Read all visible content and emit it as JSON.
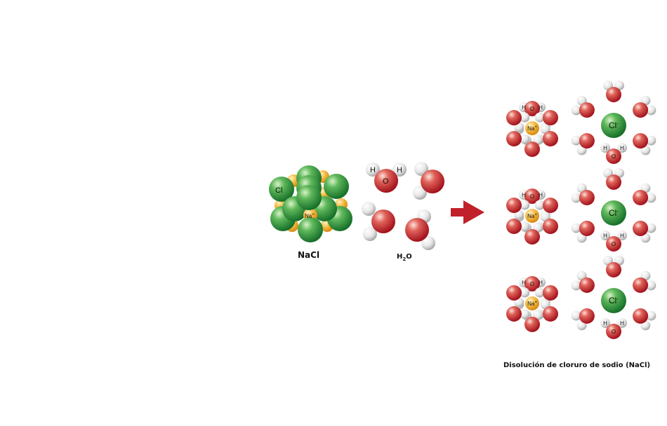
{
  "nacl": {
    "caption": "NaCl",
    "cl_label": "Cl",
    "na_label": "Na",
    "na_charge": "+"
  },
  "water": {
    "caption_main": "H",
    "caption_sub": "2",
    "caption_end": "O",
    "h_label": "H",
    "o_label": "O"
  },
  "solution": {
    "caption": "Disolución de cloruro de sodio (NaCl)",
    "na_label": "Na",
    "na_charge": "+",
    "cl_label": "Cl",
    "cl_charge": "-",
    "h_label": "H",
    "o_label": "O"
  },
  "colors": {
    "chlorine_green": "#1f8a2e",
    "sodium_orange": "#f2a623",
    "oxygen_red": "#c0202a",
    "hydrogen_white": "#e8e8e8",
    "arrow_red": "#c0202a"
  }
}
